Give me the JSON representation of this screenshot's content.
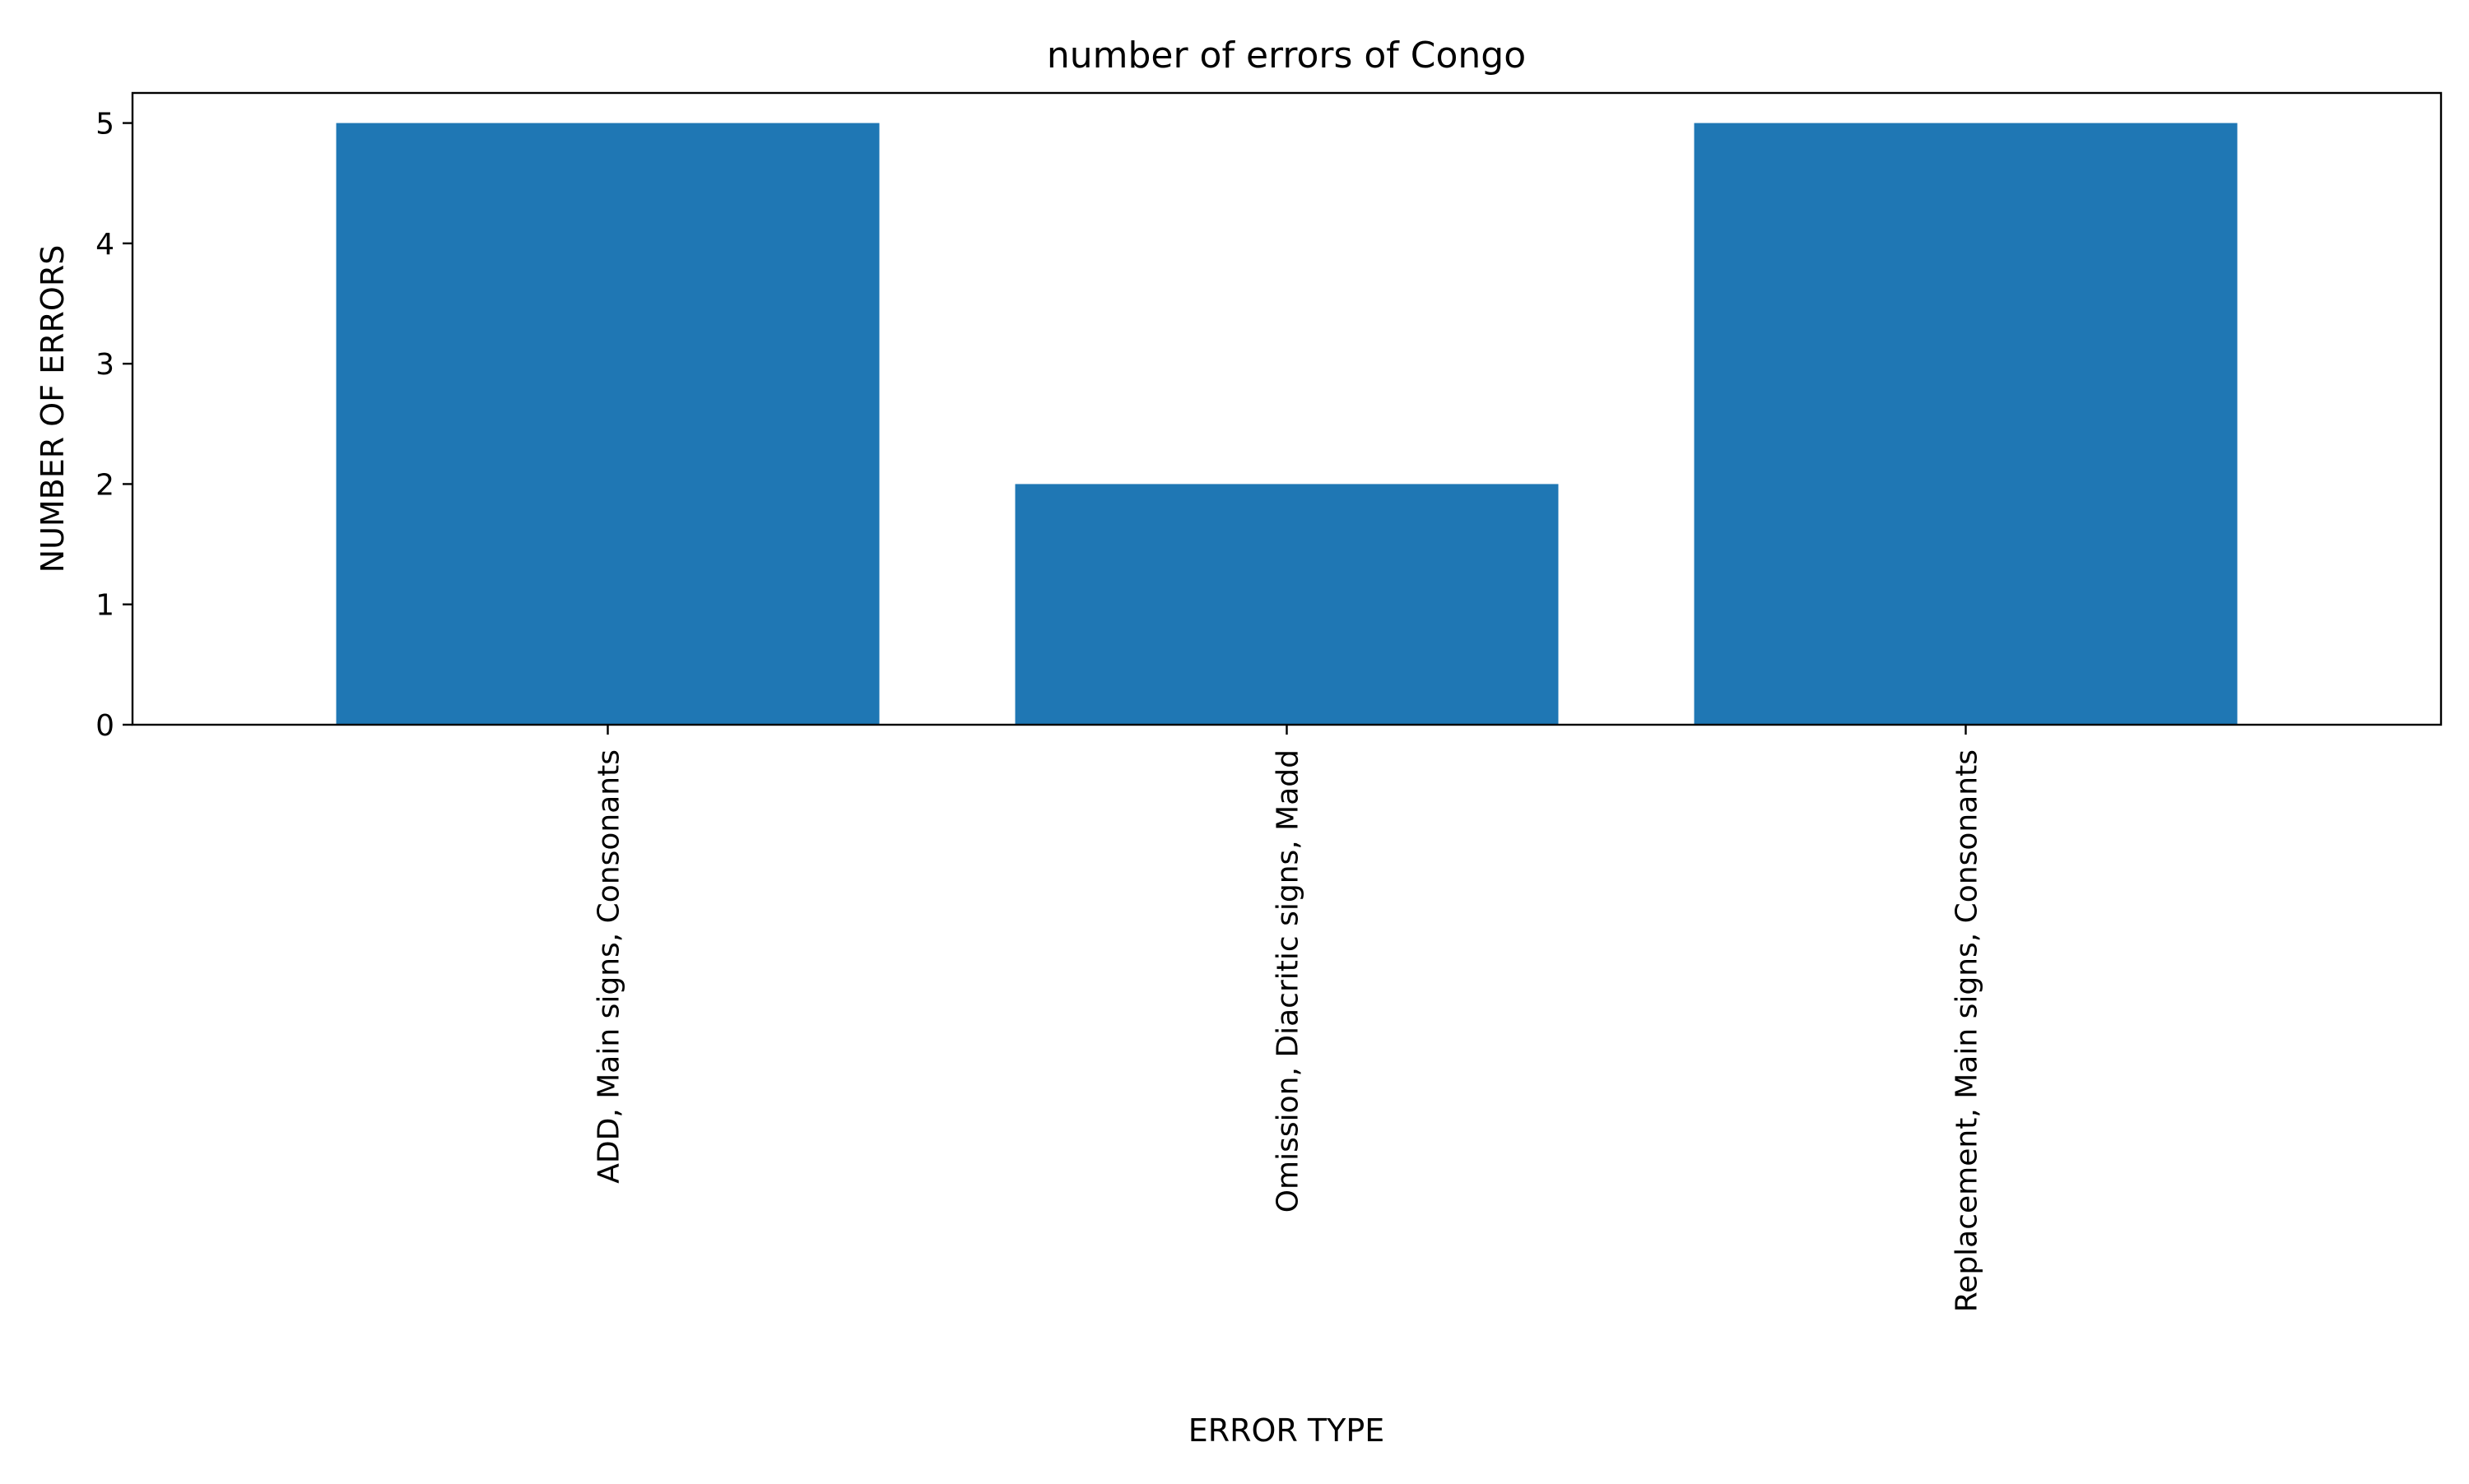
{
  "chart_data": {
    "type": "bar",
    "title": "number of errors of Congo",
    "xlabel": "ERROR TYPE",
    "ylabel": "NUMBER OF ERRORS",
    "categories": [
      "ADD, Main signs, Consonants",
      "Omission, Diacritic signs, Madd",
      "Replacement, Main signs, Consonants"
    ],
    "values": [
      5,
      2,
      5
    ],
    "ylim": [
      0,
      5.25
    ],
    "yticks": [
      0,
      1,
      2,
      3,
      4,
      5
    ],
    "grid": false,
    "legend": "none",
    "bar_color": "#1f77b4",
    "xtick_rotation": 90
  }
}
